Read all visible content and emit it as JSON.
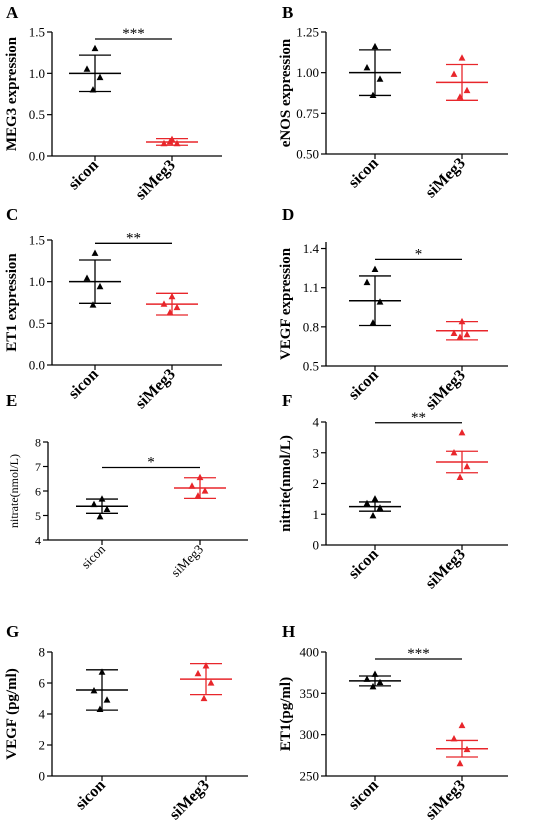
{
  "colors": {
    "control": "#000000",
    "treatment": "#e8262b"
  },
  "marker": "triangle-up",
  "chart_data": [
    {
      "panel": "A",
      "type": "scatter",
      "categories": [
        "sicon",
        "siMeg3"
      ],
      "ylabel": "MEG3 expression",
      "ylim": [
        0,
        1.5
      ],
      "yticks": [
        "0.0",
        "0.5",
        "1.0",
        "1.5"
      ],
      "points": [
        [
          1.3,
          1.05,
          0.95,
          0.8
        ],
        [
          0.2,
          0.15,
          0.15,
          0.17
        ]
      ],
      "mean": [
        1.0,
        0.17
      ],
      "error": [
        0.22,
        0.04
      ],
      "significance": "***"
    },
    {
      "panel": "B",
      "type": "scatter",
      "categories": [
        "sicon",
        "siMeg3"
      ],
      "ylabel": "eNOS expression",
      "ylim": [
        0.5,
        1.25
      ],
      "yticks": [
        "0.50",
        "0.75",
        "1.00",
        "1.25"
      ],
      "points": [
        [
          1.16,
          1.03,
          0.96,
          0.86
        ],
        [
          1.09,
          0.99,
          0.89,
          0.85
        ]
      ],
      "mean": [
        1.0,
        0.94
      ],
      "error": [
        0.14,
        0.11
      ],
      "significance": ""
    },
    {
      "panel": "C",
      "type": "scatter",
      "categories": [
        "sicon",
        "siMeg3"
      ],
      "ylabel": "ET1 expression",
      "ylim": [
        0,
        1.5
      ],
      "yticks": [
        "0.0",
        "0.5",
        "1.0",
        "1.5"
      ],
      "points": [
        [
          1.34,
          1.04,
          0.94,
          0.72
        ],
        [
          0.82,
          0.73,
          0.69,
          0.63
        ]
      ],
      "mean": [
        1.0,
        0.73
      ],
      "error": [
        0.26,
        0.13
      ],
      "significance": "**"
    },
    {
      "panel": "D",
      "type": "scatter",
      "categories": [
        "sicon",
        "siMeg3"
      ],
      "ylabel": "VEGF expression",
      "ylim": [
        0.5,
        1.45
      ],
      "yticks": [
        "0.5",
        "0.8",
        "1.1",
        "1.4"
      ],
      "points": [
        [
          1.24,
          1.14,
          0.99,
          0.83
        ],
        [
          0.84,
          0.75,
          0.74,
          0.72
        ]
      ],
      "mean": [
        1.0,
        0.77
      ],
      "error": [
        0.19,
        0.07
      ],
      "significance": "*"
    },
    {
      "panel": "E",
      "type": "scatter",
      "categories": [
        "sicon",
        "siMeg3"
      ],
      "ylabel": "nitrate(nmol/L)",
      "ylim": [
        4,
        8
      ],
      "yticks": [
        "4",
        "5",
        "6",
        "7",
        "8"
      ],
      "points": [
        [
          5.67,
          5.45,
          5.25,
          4.95
        ],
        [
          6.55,
          6.2,
          6.0,
          5.8
        ]
      ],
      "mean": [
        5.38,
        6.12
      ],
      "error": [
        0.29,
        0.42
      ],
      "significance": "*"
    },
    {
      "panel": "F",
      "type": "scatter",
      "categories": [
        "sicon",
        "siMeg3"
      ],
      "ylabel": "nitrite(nmol/L)",
      "ylim": [
        0,
        4
      ],
      "yticks": [
        "0",
        "1",
        "2",
        "3",
        "4"
      ],
      "points": [
        [
          1.5,
          1.35,
          1.2,
          0.95
        ],
        [
          3.65,
          3.0,
          2.55,
          2.2
        ]
      ],
      "mean": [
        1.25,
        2.7
      ],
      "error": [
        0.15,
        0.35
      ],
      "significance": "**"
    },
    {
      "panel": "G",
      "type": "scatter",
      "categories": [
        "sicon",
        "siMeg3"
      ],
      "ylabel": "VEGF  (pg/ml)",
      "ylim": [
        0,
        8
      ],
      "yticks": [
        "0",
        "2",
        "4",
        "6",
        "8"
      ],
      "points": [
        [
          6.7,
          5.5,
          4.9,
          4.3
        ],
        [
          7.1,
          6.6,
          6.0,
          5.0
        ]
      ],
      "mean": [
        5.55,
        6.25
      ],
      "error": [
        1.3,
        1.0
      ],
      "significance": ""
    },
    {
      "panel": "H",
      "type": "scatter",
      "categories": [
        "sicon",
        "siMeg3"
      ],
      "ylabel": "ET1(pg/ml)",
      "ylim": [
        250,
        400
      ],
      "yticks": [
        "250",
        "300",
        "350",
        "400"
      ],
      "points": [
        [
          373,
          367,
          363,
          358
        ],
        [
          311,
          295,
          282,
          265
        ]
      ],
      "mean": [
        365,
        283
      ],
      "error": [
        6,
        10
      ],
      "significance": "***"
    }
  ]
}
